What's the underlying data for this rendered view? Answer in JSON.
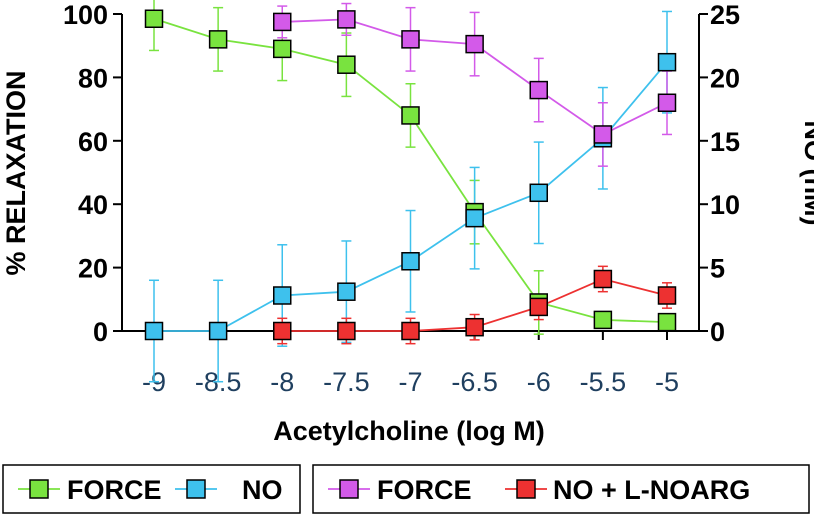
{
  "chart_data": {
    "type": "line",
    "xlabel": "Acetylcholine (log M)",
    "ylabel_left": "% RELAXATION",
    "ylabel_right": "NO (nM)",
    "x_ticks": [
      "-9",
      "-8.5",
      "-8",
      "-7.5",
      "-7",
      "-6.5",
      "-6",
      "-5.5",
      "-5"
    ],
    "y_left_ticks": [
      "0",
      "20",
      "40",
      "60",
      "80",
      "100"
    ],
    "y_right_ticks": [
      "0",
      "5",
      "10",
      "15",
      "20",
      "25"
    ],
    "ylim_left": [
      0,
      100
    ],
    "ylim_right": [
      0,
      25
    ],
    "xlim": [
      -9,
      -5
    ],
    "grid": false,
    "series": [
      {
        "name": "FORCE",
        "axis": "left",
        "color": "#79e33f",
        "x": [
          -9,
          -8.5,
          -8,
          -7.5,
          -7,
          -6.5,
          -6,
          -5.5,
          -5
        ],
        "y": [
          98.5,
          92,
          89,
          84,
          68,
          37.5,
          9,
          3.5,
          2.8
        ],
        "err": [
          10,
          10,
          10,
          10,
          10,
          10,
          10,
          0,
          0
        ]
      },
      {
        "name": "NO",
        "axis": "right",
        "color": "#3ec1ed",
        "x": [
          -9,
          -8.5,
          -8,
          -7.5,
          -7,
          -6.5,
          -6,
          -5.5,
          -5
        ],
        "y": [
          0,
          0,
          2.8,
          3.1,
          5.5,
          8.9,
          10.9,
          15.2,
          21.2
        ],
        "err": [
          4,
          4,
          4,
          4,
          4,
          4,
          4,
          4,
          4
        ]
      },
      {
        "name": "FORCE",
        "axis": "left",
        "color": "#d35ae9",
        "x": [
          -8,
          -7.5,
          -7,
          -6.5,
          -6,
          -5.5,
          -5
        ],
        "y": [
          97.5,
          98.3,
          92,
          90.5,
          76,
          62,
          72
        ],
        "err": [
          5,
          5,
          10,
          10,
          10,
          10,
          10
        ]
      },
      {
        "name": "NO + L-NOARG",
        "axis": "right",
        "color": "#ed3131",
        "x": [
          -8,
          -7.5,
          -7,
          -6.5,
          -6,
          -5.5,
          -5
        ],
        "y": [
          0,
          0,
          0,
          0.3,
          1.9,
          4.1,
          2.8
        ],
        "err": [
          1,
          1,
          1,
          1,
          1,
          1,
          1
        ]
      }
    ],
    "legend": {
      "placement": "bottom",
      "groups": [
        [
          "FORCE",
          "NO"
        ],
        [
          "FORCE",
          "NO + L-NOARG"
        ]
      ]
    }
  }
}
